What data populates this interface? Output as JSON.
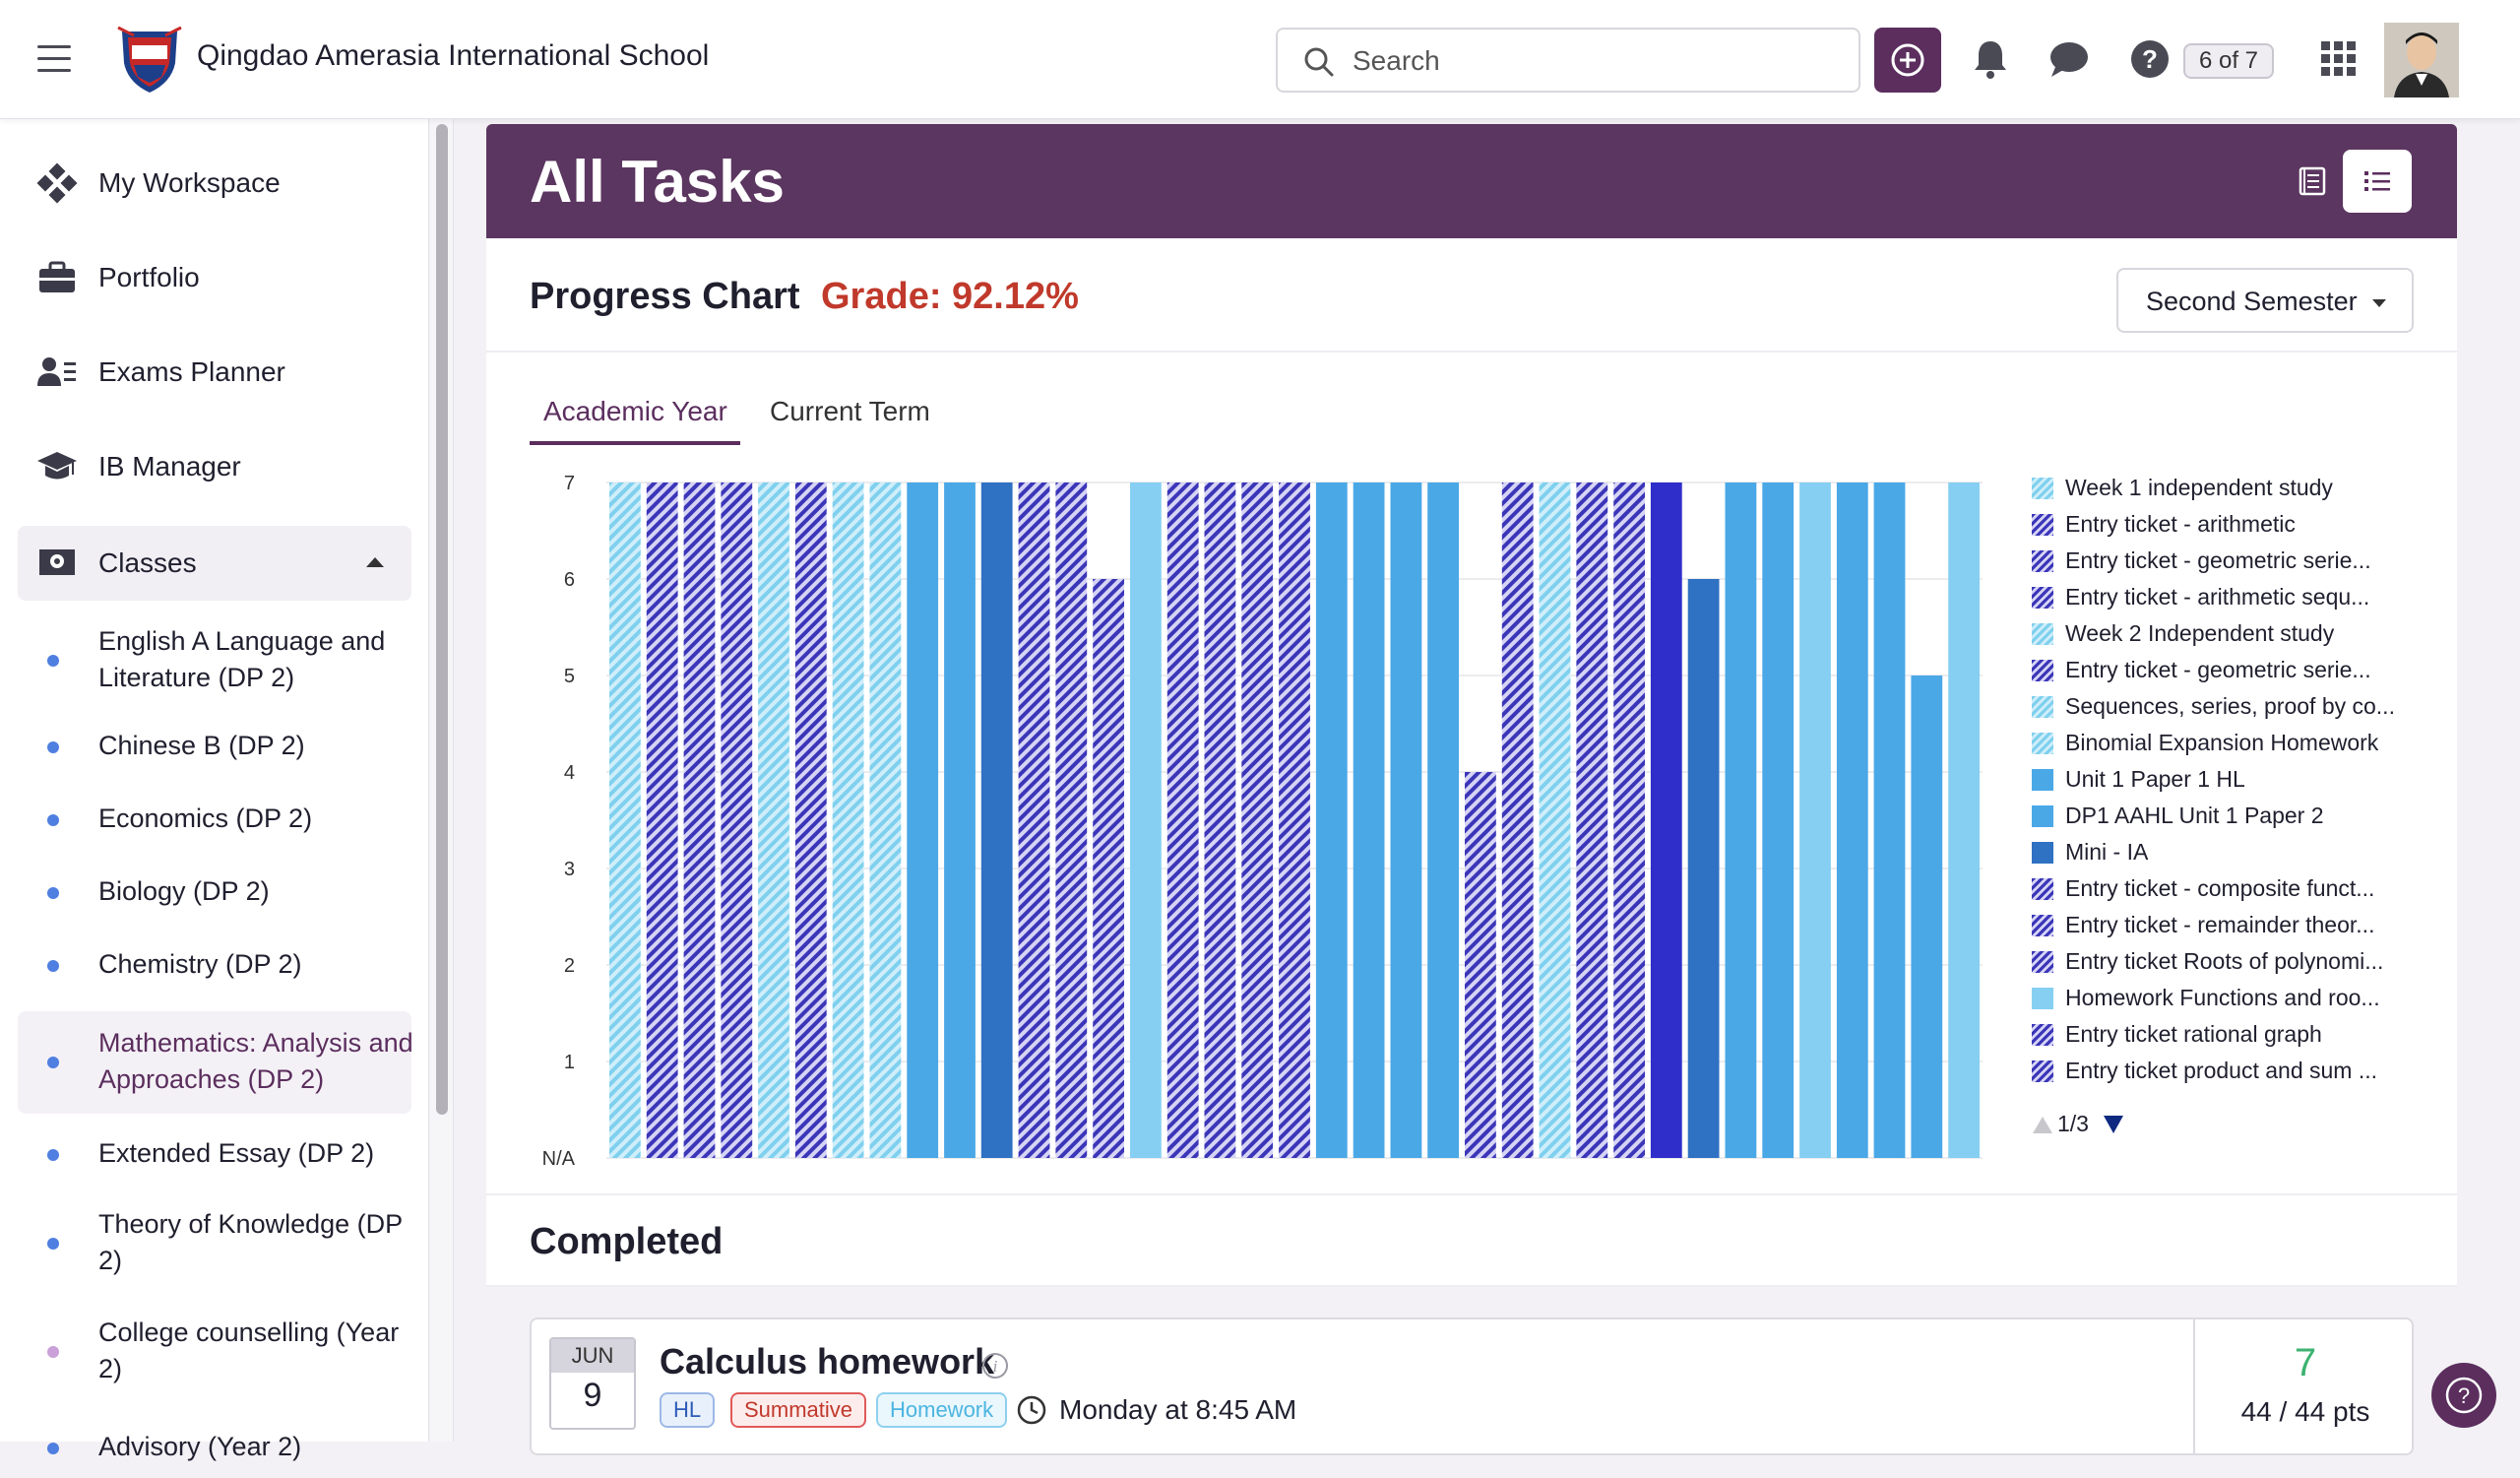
{
  "topbar": {
    "school_name": "Qingdao Amerasia International School",
    "search_placeholder": "Search",
    "page_counter": "6 of 7"
  },
  "sidebar": {
    "items": [
      {
        "label": "My Workspace",
        "icon": "workspace-icon"
      },
      {
        "label": "Portfolio",
        "icon": "briefcase-icon"
      },
      {
        "label": "Exams Planner",
        "icon": "exams-planner-icon"
      },
      {
        "label": "IB Manager",
        "icon": "graduation-cap-icon"
      },
      {
        "label": "Classes",
        "icon": "classes-icon"
      }
    ],
    "classes": [
      {
        "label": "English A Language and Literature (DP 2)",
        "dot": "#4f7fe0"
      },
      {
        "label": "Chinese B (DP 2)",
        "dot": "#4f7fe0"
      },
      {
        "label": "Economics (DP 2)",
        "dot": "#4f7fe0"
      },
      {
        "label": "Biology (DP 2)",
        "dot": "#4f7fe0"
      },
      {
        "label": "Chemistry (DP 2)",
        "dot": "#4f7fe0"
      },
      {
        "label": "Mathematics: Analysis and Approaches (DP 2)",
        "dot": "#4f7fe0"
      },
      {
        "label": "Extended Essay (DP 2)",
        "dot": "#4f7fe0"
      },
      {
        "label": "Theory of Knowledge (DP 2)",
        "dot": "#4f7fe0"
      },
      {
        "label": "College counselling (Year 2)",
        "dot": "#c9a0d8"
      },
      {
        "label": "Advisory (Year 2)",
        "dot": "#4f7fe0"
      }
    ]
  },
  "main": {
    "page_title": "All Tasks",
    "progress_title": "Progress Chart",
    "grade_text": "Grade: 92.12%",
    "semester": "Second Semester",
    "tabs": [
      "Academic Year",
      "Current Term"
    ],
    "completed_title": "Completed",
    "legend_pager": "1/3",
    "task": {
      "month": "JUN",
      "day": "9",
      "title": "Calculus homework",
      "tags": [
        "HL",
        "Summative",
        "Homework"
      ],
      "time": "Monday at 8:45 AM",
      "score": "7",
      "points": "44 / 44 pts"
    }
  },
  "colors": {
    "brand": "#5b2e5e",
    "header": "#5b3660",
    "grade": "#c0392b",
    "score": "#3cb371"
  },
  "chart_data": {
    "type": "bar",
    "ytick_labels": [
      "N/A",
      "1",
      "2",
      "3",
      "4",
      "5",
      "6",
      "7"
    ],
    "ylim": [
      0,
      7
    ],
    "grid": true,
    "legend": "right",
    "bars": [
      {
        "value": 7,
        "style": "light-hatch"
      },
      {
        "value": 7,
        "style": "dark-hatch"
      },
      {
        "value": 7,
        "style": "dark-hatch"
      },
      {
        "value": 7,
        "style": "dark-hatch"
      },
      {
        "value": 7,
        "style": "light-hatch"
      },
      {
        "value": 7,
        "style": "dark-hatch"
      },
      {
        "value": 7,
        "style": "light-hatch"
      },
      {
        "value": 7,
        "style": "light-hatch"
      },
      {
        "value": 7,
        "style": "mid-blue"
      },
      {
        "value": 7,
        "style": "mid-blue"
      },
      {
        "value": 7,
        "style": "dark-blue"
      },
      {
        "value": 7,
        "style": "dark-hatch"
      },
      {
        "value": 7,
        "style": "dark-hatch"
      },
      {
        "value": 6,
        "style": "dark-hatch"
      },
      {
        "value": 7,
        "style": "light-blue"
      },
      {
        "value": 7,
        "style": "dark-hatch"
      },
      {
        "value": 7,
        "style": "dark-hatch"
      },
      {
        "value": 7,
        "style": "dark-hatch"
      },
      {
        "value": 7,
        "style": "dark-hatch"
      },
      {
        "value": 7,
        "style": "mid-blue"
      },
      {
        "value": 7,
        "style": "mid-blue"
      },
      {
        "value": 7,
        "style": "mid-blue"
      },
      {
        "value": 7,
        "style": "mid-blue"
      },
      {
        "value": 4,
        "style": "dark-hatch"
      },
      {
        "value": 7,
        "style": "dark-hatch"
      },
      {
        "value": 7,
        "style": "light-hatch"
      },
      {
        "value": 7,
        "style": "dark-hatch"
      },
      {
        "value": 7,
        "style": "dark-hatch"
      },
      {
        "value": 7,
        "style": "indigo"
      },
      {
        "value": 6,
        "style": "dark-blue"
      },
      {
        "value": 7,
        "style": "mid-blue"
      },
      {
        "value": 7,
        "style": "mid-blue"
      },
      {
        "value": 7,
        "style": "light-blue"
      },
      {
        "value": 7,
        "style": "mid-blue"
      },
      {
        "value": 7,
        "style": "mid-blue"
      },
      {
        "value": 5,
        "style": "mid-blue"
      },
      {
        "value": 7,
        "style": "light-blue"
      }
    ],
    "legend_entries": [
      {
        "label": "Week 1 independent study",
        "style": "light-hatch"
      },
      {
        "label": "Entry ticket - arithmetic",
        "style": "dark-hatch"
      },
      {
        "label": "Entry ticket - geometric serie...",
        "style": "dark-hatch"
      },
      {
        "label": "Entry ticket - arithmetic sequ...",
        "style": "dark-hatch"
      },
      {
        "label": "Week 2 Independent study",
        "style": "light-hatch"
      },
      {
        "label": "Entry ticket - geometric serie...",
        "style": "dark-hatch"
      },
      {
        "label": "Sequences, series, proof by co...",
        "style": "light-hatch"
      },
      {
        "label": "Binomial Expansion Homework",
        "style": "light-hatch"
      },
      {
        "label": "Unit 1 Paper 1 HL",
        "style": "mid-blue"
      },
      {
        "label": "DP1 AAHL Unit 1 Paper 2",
        "style": "mid-blue"
      },
      {
        "label": "Mini - IA",
        "style": "dark-blue"
      },
      {
        "label": "Entry ticket - composite funct...",
        "style": "dark-hatch"
      },
      {
        "label": "Entry ticket - remainder theor...",
        "style": "dark-hatch"
      },
      {
        "label": "Entry ticket Roots of polynomi...",
        "style": "dark-hatch"
      },
      {
        "label": "Homework Functions and roo...",
        "style": "light-blue"
      },
      {
        "label": "Entry ticket rational graph",
        "style": "dark-hatch"
      },
      {
        "label": "Entry ticket product and sum ...",
        "style": "dark-hatch"
      }
    ]
  }
}
